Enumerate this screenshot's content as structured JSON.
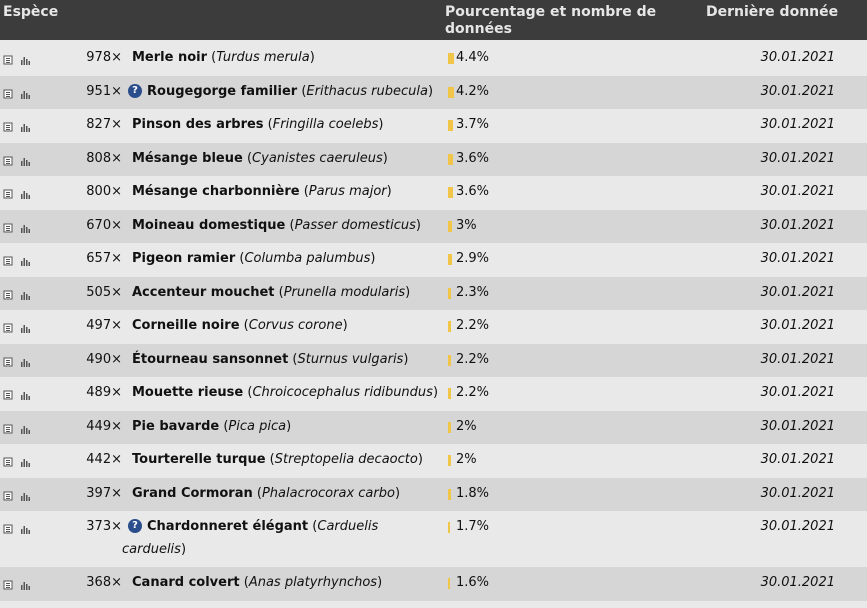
{
  "header": {
    "species": "Espèce",
    "percent": "Pourcentage et nombre de données",
    "last": "Dernière donnée"
  },
  "colors": {
    "bar": "#f0c548",
    "header_bg": "#3c3c3c",
    "info_icon": "#2a4e8c"
  },
  "icons": {
    "list": "list-icon",
    "chart": "chart-icon",
    "info": "info-icon"
  },
  "rows": [
    {
      "count": "978×",
      "common": "Merle noir",
      "sci": "Turdus merula",
      "pct": "4.4%",
      "share": 0.044,
      "date": "30.01.2021",
      "info": false
    },
    {
      "count": "951×",
      "common": "Rougegorge familier",
      "sci": "Erithacus rubecula",
      "pct": "4.2%",
      "share": 0.042,
      "date": "30.01.2021",
      "info": true
    },
    {
      "count": "827×",
      "common": "Pinson des arbres",
      "sci": "Fringilla coelebs",
      "pct": "3.7%",
      "share": 0.037,
      "date": "30.01.2021",
      "info": false
    },
    {
      "count": "808×",
      "common": "Mésange bleue",
      "sci": "Cyanistes caeruleus",
      "pct": "3.6%",
      "share": 0.036,
      "date": "30.01.2021",
      "info": false
    },
    {
      "count": "800×",
      "common": "Mésange charbonnière",
      "sci": "Parus major",
      "pct": "3.6%",
      "share": 0.036,
      "date": "30.01.2021",
      "info": false
    },
    {
      "count": "670×",
      "common": "Moineau domestique",
      "sci": "Passer domesticus",
      "pct": "3%",
      "share": 0.03,
      "date": "30.01.2021",
      "info": false
    },
    {
      "count": "657×",
      "common": "Pigeon ramier",
      "sci": "Columba palumbus",
      "pct": "2.9%",
      "share": 0.029,
      "date": "30.01.2021",
      "info": false
    },
    {
      "count": "505×",
      "common": "Accenteur mouchet",
      "sci": "Prunella modularis",
      "pct": "2.3%",
      "share": 0.023,
      "date": "30.01.2021",
      "info": false
    },
    {
      "count": "497×",
      "common": "Corneille noire",
      "sci": "Corvus corone",
      "pct": "2.2%",
      "share": 0.022,
      "date": "30.01.2021",
      "info": false
    },
    {
      "count": "490×",
      "common": "Étourneau sansonnet",
      "sci": "Sturnus vulgaris",
      "pct": "2.2%",
      "share": 0.022,
      "date": "30.01.2021",
      "info": false
    },
    {
      "count": "489×",
      "common": "Mouette rieuse",
      "sci": "Chroicocephalus ridibundus",
      "pct": "2.2%",
      "share": 0.022,
      "date": "30.01.2021",
      "info": false
    },
    {
      "count": "449×",
      "common": "Pie bavarde",
      "sci": "Pica pica",
      "pct": "2%",
      "share": 0.02,
      "date": "30.01.2021",
      "info": false
    },
    {
      "count": "442×",
      "common": "Tourterelle turque",
      "sci": "Streptopelia decaocto",
      "pct": "2%",
      "share": 0.02,
      "date": "30.01.2021",
      "info": false
    },
    {
      "count": "397×",
      "common": "Grand Cormoran",
      "sci": "Phalacrocorax carbo",
      "pct": "1.8%",
      "share": 0.018,
      "date": "30.01.2021",
      "info": false
    },
    {
      "count": "373×",
      "common": "Chardonneret élégant",
      "sci": "Carduelis",
      "sci2": "carduelis",
      "pct": "1.7%",
      "share": 0.017,
      "date": "30.01.2021",
      "info": true
    },
    {
      "count": "368×",
      "common": "Canard colvert",
      "sci": "Anas platyrhynchos",
      "pct": "1.6%",
      "share": 0.016,
      "date": "30.01.2021",
      "info": false
    }
  ]
}
